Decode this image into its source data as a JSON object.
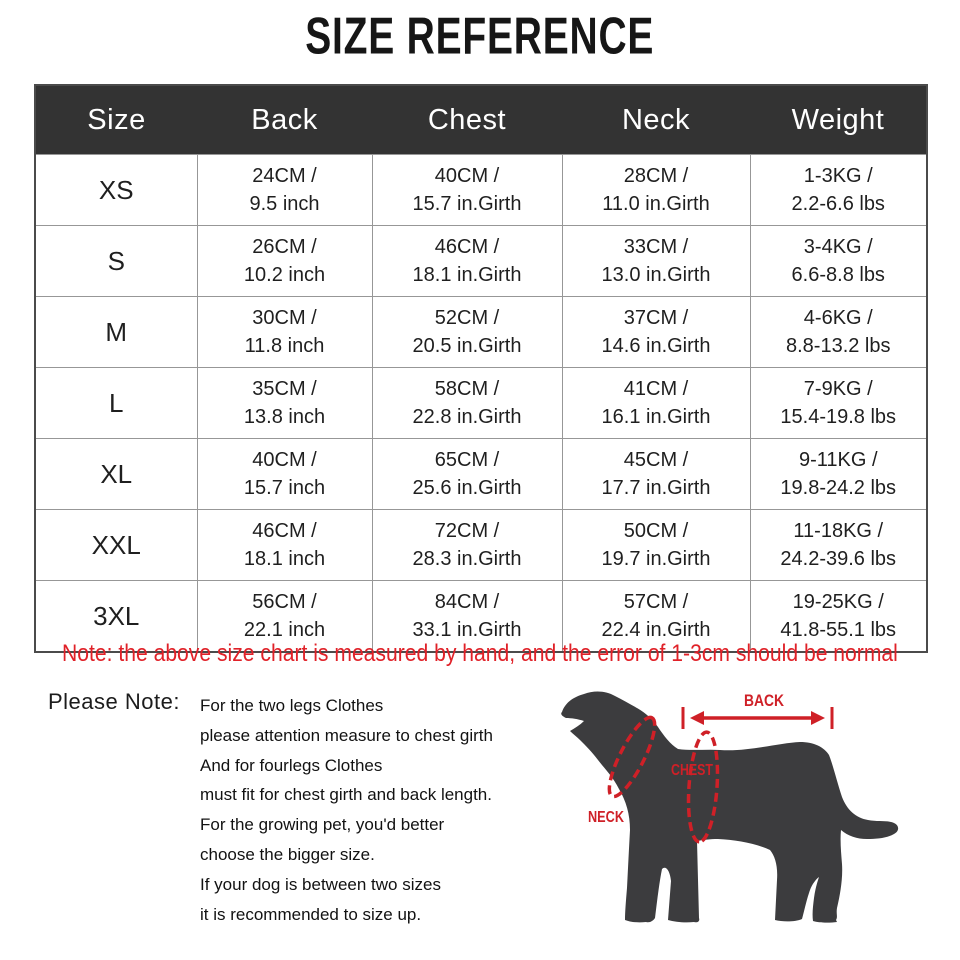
{
  "title": "SIZE REFERENCE",
  "table": {
    "columns": [
      "Size",
      "Back",
      "Chest",
      "Neck",
      "Weight"
    ],
    "rows": [
      {
        "size": "XS",
        "back": [
          "24CM /",
          "9.5 inch"
        ],
        "chest": [
          "40CM /",
          "15.7 in.Girth"
        ],
        "neck": [
          "28CM /",
          "11.0 in.Girth"
        ],
        "weight": [
          "1-3KG /",
          "2.2-6.6 lbs"
        ]
      },
      {
        "size": "S",
        "back": [
          "26CM /",
          "10.2 inch"
        ],
        "chest": [
          "46CM /",
          "18.1 in.Girth"
        ],
        "neck": [
          "33CM /",
          "13.0 in.Girth"
        ],
        "weight": [
          "3-4KG /",
          "6.6-8.8 lbs"
        ]
      },
      {
        "size": "M",
        "back": [
          "30CM /",
          "11.8 inch"
        ],
        "chest": [
          "52CM /",
          "20.5 in.Girth"
        ],
        "neck": [
          "37CM /",
          "14.6 in.Girth"
        ],
        "weight": [
          "4-6KG /",
          "8.8-13.2 lbs"
        ]
      },
      {
        "size": "L",
        "back": [
          "35CM /",
          "13.8 inch"
        ],
        "chest": [
          "58CM /",
          "22.8 in.Girth"
        ],
        "neck": [
          "41CM /",
          "16.1 in.Girth"
        ],
        "weight": [
          "7-9KG /",
          "15.4-19.8 lbs"
        ]
      },
      {
        "size": "XL",
        "back": [
          "40CM /",
          "15.7 inch"
        ],
        "chest": [
          "65CM /",
          "25.6 in.Girth"
        ],
        "neck": [
          "45CM /",
          "17.7 in.Girth"
        ],
        "weight": [
          "9-11KG /",
          "19.8-24.2 lbs"
        ]
      },
      {
        "size": "XXL",
        "back": [
          "46CM /",
          "18.1 inch"
        ],
        "chest": [
          "72CM /",
          "28.3 in.Girth"
        ],
        "neck": [
          "50CM /",
          "19.7 in.Girth"
        ],
        "weight": [
          "11-18KG /",
          "24.2-39.6 lbs"
        ]
      },
      {
        "size": "3XL",
        "back": [
          "56CM /",
          "22.1 inch"
        ],
        "chest": [
          "84CM /",
          "33.1 in.Girth"
        ],
        "neck": [
          "57CM /",
          "22.4 in.Girth"
        ],
        "weight": [
          "19-25KG /",
          "41.8-55.1 lbs"
        ]
      }
    ]
  },
  "note": "Note: the above size chart is measured by hand, and the error of 1-3cm should be normal",
  "please_note": {
    "label": "Please Note:",
    "lines": [
      "For the two legs Clothes",
      "please attention measure to chest girth",
      "And for fourlegs Clothes",
      "must fit for chest girth and back length.",
      "For the growing pet, you'd better",
      "choose the bigger size.",
      "If your dog is between two sizes",
      "it is recommended to size up."
    ]
  },
  "diagram": {
    "back_label": "BACK",
    "chest_label": "CHEST",
    "neck_label": "NECK"
  },
  "colors": {
    "header_bg": "#333333",
    "table_outer_border": "#4b4b4b",
    "cell_border": "#979797",
    "note_red": "#e02128",
    "diagram_red": "#cf2027",
    "dog_fill": "#3c3c3e"
  }
}
